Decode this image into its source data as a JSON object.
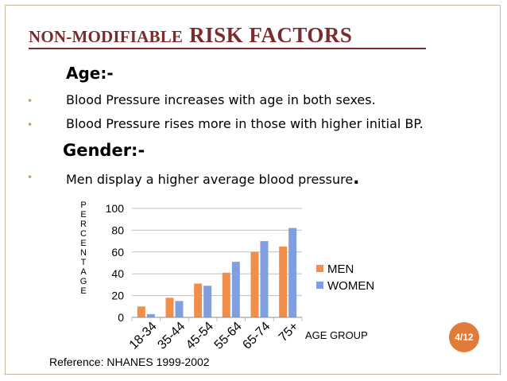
{
  "slide": {
    "title_part1": "NON-MODIFIABLE",
    "title_part2": "RISK FACTORS",
    "age_heading": "Age:-",
    "age_bullets": [
      "Blood Pressure increases with age in both sexes.",
      "Blood Pressure rises more in those with higher initial BP."
    ],
    "gender_heading": "Gender:-",
    "gender_bullet": "Men display a higher average blood pressure",
    "gender_bullet_end": ".",
    "bullet_glyph": "•",
    "reference": "Reference: NHANES 1999-2002",
    "page_number": "4/12"
  },
  "colors": {
    "title": "#7b2b2b",
    "bullet": "#c79a6b",
    "men": "#f28e4c",
    "women": "#7f9fe0",
    "badge": "#e07b39"
  },
  "chart_data": {
    "type": "bar",
    "categories": [
      "18-34",
      "35-44",
      "45-54",
      "55-64",
      "65-74",
      "75+"
    ],
    "series": [
      {
        "name": "MEN",
        "values": [
          10,
          18,
          31,
          41,
          60,
          65
        ]
      },
      {
        "name": "WOMEN",
        "values": [
          3,
          15,
          29,
          51,
          70,
          82
        ]
      }
    ],
    "ylabel_letters": [
      "P",
      "E",
      "R",
      "C",
      "E",
      "N",
      "T",
      "A",
      "G",
      "E"
    ],
    "xlabel": "AGE GROUP",
    "yticks": [
      0,
      20,
      40,
      60,
      80,
      100
    ],
    "ylim": [
      0,
      100
    ],
    "grid": true,
    "legend": "right"
  }
}
